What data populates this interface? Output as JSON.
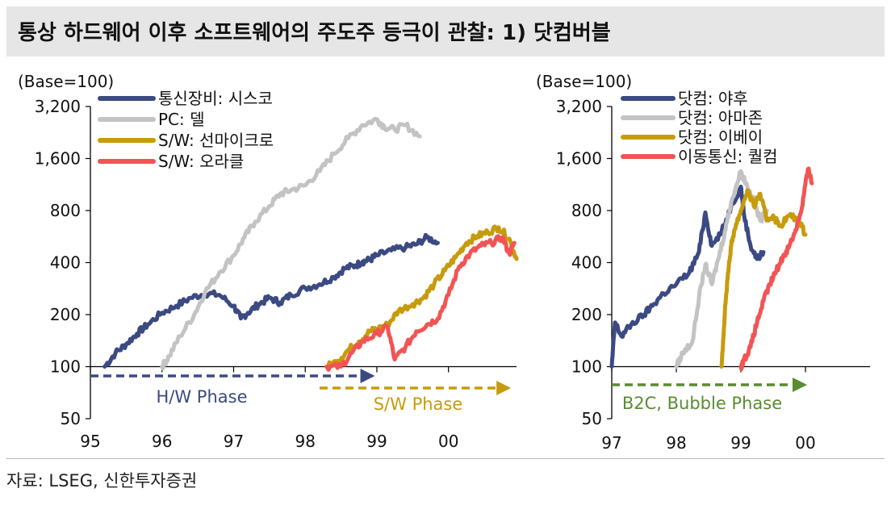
{
  "title": "통상 하드웨어 이후 소프트웨어의 주도주 등극이 관찰: 1) 닷컴버블",
  "source": "자료: LSEG, 신한투자증권",
  "chart_data": [
    {
      "type": "line",
      "yscale": "log",
      "base_label": "(Base=100)",
      "y_ticks": [
        50,
        100,
        200,
        400,
        800,
        1600,
        3200
      ],
      "y_tick_labels": [
        "50",
        "100",
        "200",
        "400",
        "800",
        "1,600",
        "3,200"
      ],
      "ylim": [
        50,
        3200
      ],
      "x_ticks": [
        1995,
        1996,
        1997,
        1998,
        1999,
        2000
      ],
      "x_tick_labels": [
        "95",
        "96",
        "97",
        "98",
        "99",
        "00"
      ],
      "xlim": [
        1995,
        2000.95
      ],
      "series": [
        {
          "name": "통신장비: 시스코",
          "color": "#3b4a82",
          "points": [
            [
              1995.2,
              100
            ],
            [
              1995.35,
              120
            ],
            [
              1995.5,
              135
            ],
            [
              1995.65,
              155
            ],
            [
              1995.8,
              175
            ],
            [
              1996.0,
              205
            ],
            [
              1996.2,
              225
            ],
            [
              1996.4,
              250
            ],
            [
              1996.6,
              265
            ],
            [
              1996.8,
              260
            ],
            [
              1997.0,
              225
            ],
            [
              1997.1,
              190
            ],
            [
              1997.2,
              205
            ],
            [
              1997.35,
              230
            ],
            [
              1997.5,
              250
            ],
            [
              1997.65,
              235
            ],
            [
              1997.8,
              260
            ],
            [
              1998.0,
              285
            ],
            [
              1998.2,
              300
            ],
            [
              1998.4,
              330
            ],
            [
              1998.55,
              370
            ],
            [
              1998.7,
              385
            ],
            [
              1998.8,
              405
            ],
            [
              1998.9,
              415
            ],
            [
              1999.0,
              440
            ],
            [
              1999.2,
              470
            ],
            [
              1999.4,
              490
            ],
            [
              1999.55,
              510
            ],
            [
              1999.7,
              560
            ],
            [
              1999.85,
              520
            ]
          ]
        },
        {
          "name": "PC: 델",
          "color": "#c3c3c3",
          "points": [
            [
              1996.0,
              100
            ],
            [
              1996.1,
              115
            ],
            [
              1996.25,
              150
            ],
            [
              1996.45,
              200
            ],
            [
              1996.6,
              270
            ],
            [
              1996.8,
              350
            ],
            [
              1997.0,
              440
            ],
            [
              1997.15,
              560
            ],
            [
              1997.3,
              690
            ],
            [
              1997.5,
              850
            ],
            [
              1997.65,
              1000
            ],
            [
              1997.8,
              1050
            ],
            [
              1998.0,
              1120
            ],
            [
              1998.2,
              1350
            ],
            [
              1998.4,
              1700
            ],
            [
              1998.6,
              2100
            ],
            [
              1998.8,
              2500
            ],
            [
              1999.0,
              2700
            ],
            [
              1999.1,
              2450
            ],
            [
              1999.25,
              2350
            ],
            [
              1999.4,
              2500
            ],
            [
              1999.6,
              2150
            ]
          ]
        },
        {
          "name": "S/W: 선마이크로",
          "color": "#c79b0c",
          "points": [
            [
              1998.3,
              100
            ],
            [
              1998.45,
              108
            ],
            [
              1998.6,
              125
            ],
            [
              1998.75,
              140
            ],
            [
              1998.9,
              160
            ],
            [
              1999.0,
              165
            ],
            [
              1999.15,
              175
            ],
            [
              1999.3,
              210
            ],
            [
              1999.5,
              230
            ],
            [
              1999.65,
              250
            ],
            [
              1999.8,
              300
            ],
            [
              1999.95,
              360
            ],
            [
              2000.1,
              430
            ],
            [
              2000.25,
              520
            ],
            [
              2000.4,
              570
            ],
            [
              2000.55,
              600
            ],
            [
              2000.7,
              640
            ],
            [
              2000.85,
              550
            ],
            [
              2000.95,
              420
            ]
          ]
        },
        {
          "name": "S/W: 오라클",
          "color": "#f25454",
          "points": [
            [
              1998.3,
              100
            ],
            [
              1998.5,
              100
            ],
            [
              1998.65,
              120
            ],
            [
              1998.8,
              140
            ],
            [
              1999.0,
              155
            ],
            [
              1999.15,
              170
            ],
            [
              1999.25,
              110
            ],
            [
              1999.4,
              130
            ],
            [
              1999.55,
              160
            ],
            [
              1999.7,
              175
            ],
            [
              1999.85,
              190
            ],
            [
              2000.0,
              260
            ],
            [
              2000.15,
              380
            ],
            [
              2000.3,
              450
            ],
            [
              2000.45,
              500
            ],
            [
              2000.6,
              520
            ],
            [
              2000.75,
              560
            ],
            [
              2000.85,
              450
            ],
            [
              2000.92,
              520
            ]
          ]
        }
      ],
      "phases": [
        {
          "label": "H/W Phase",
          "color": "#3b4a82",
          "from": 1995.0,
          "to": 1998.95
        },
        {
          "label": "S/W Phase",
          "color": "#c79b0c",
          "from": 1998.2,
          "to": 2000.85
        }
      ]
    },
    {
      "type": "line",
      "yscale": "log",
      "base_label": "(Base=100)",
      "y_ticks": [
        50,
        100,
        200,
        400,
        800,
        1600,
        3200
      ],
      "y_tick_labels": [
        "50",
        "100",
        "200",
        "400",
        "800",
        "1,600",
        "3,200"
      ],
      "ylim": [
        50,
        3200
      ],
      "x_ticks": [
        1997,
        1998,
        1999,
        2000
      ],
      "x_tick_labels": [
        "97",
        "98",
        "99",
        "00"
      ],
      "xlim": [
        1997,
        2001
      ],
      "series": [
        {
          "name": "닷컴: 야후",
          "color": "#3b4a82",
          "points": [
            [
              1997.0,
              100
            ],
            [
              1997.05,
              180
            ],
            [
              1997.15,
              150
            ],
            [
              1997.3,
              175
            ],
            [
              1997.5,
              200
            ],
            [
              1997.65,
              230
            ],
            [
              1997.8,
              265
            ],
            [
              1998.0,
              300
            ],
            [
              1998.2,
              350
            ],
            [
              1998.35,
              460
            ],
            [
              1998.45,
              780
            ],
            [
              1998.55,
              500
            ],
            [
              1998.7,
              600
            ],
            [
              1998.85,
              850
            ],
            [
              1999.0,
              1100
            ],
            [
              1999.05,
              750
            ],
            [
              1999.15,
              500
            ],
            [
              1999.25,
              420
            ],
            [
              1999.35,
              460
            ]
          ]
        },
        {
          "name": "닷컴: 아마존",
          "color": "#c3c3c3",
          "points": [
            [
              1998.0,
              100
            ],
            [
              1998.1,
              120
            ],
            [
              1998.25,
              140
            ],
            [
              1998.35,
              250
            ],
            [
              1998.45,
              390
            ],
            [
              1998.55,
              300
            ],
            [
              1998.65,
              420
            ],
            [
              1998.75,
              600
            ],
            [
              1998.85,
              900
            ],
            [
              1999.0,
              1350
            ],
            [
              1999.1,
              1100
            ],
            [
              1999.2,
              900
            ],
            [
              1999.3,
              700
            ],
            [
              1999.4,
              800
            ]
          ]
        },
        {
          "name": "닷컴: 이베이",
          "color": "#c79b0c",
          "points": [
            [
              1998.7,
              100
            ],
            [
              1998.75,
              200
            ],
            [
              1998.8,
              350
            ],
            [
              1998.85,
              500
            ],
            [
              1998.9,
              620
            ],
            [
              1999.0,
              800
            ],
            [
              1999.1,
              1050
            ],
            [
              1999.2,
              850
            ],
            [
              1999.3,
              1000
            ],
            [
              1999.4,
              700
            ],
            [
              1999.5,
              750
            ],
            [
              1999.6,
              650
            ],
            [
              1999.75,
              750
            ],
            [
              1999.9,
              700
            ],
            [
              2000.0,
              580
            ]
          ]
        },
        {
          "name": "이동통신: 퀄컴",
          "color": "#f25454",
          "points": [
            [
              1999.0,
              100
            ],
            [
              1999.05,
              110
            ],
            [
              1999.15,
              130
            ],
            [
              1999.25,
              180
            ],
            [
              1999.35,
              240
            ],
            [
              1999.45,
              300
            ],
            [
              1999.55,
              360
            ],
            [
              1999.65,
              430
            ],
            [
              1999.75,
              500
            ],
            [
              1999.85,
              620
            ],
            [
              1999.95,
              850
            ],
            [
              2000.0,
              1150
            ],
            [
              2000.05,
              1400
            ],
            [
              2000.1,
              1150
            ]
          ]
        }
      ],
      "phases": [
        {
          "label": "B2C, Bubble Phase",
          "color": "#5a8c32",
          "from": 1997.0,
          "to": 2000.0
        }
      ]
    }
  ]
}
